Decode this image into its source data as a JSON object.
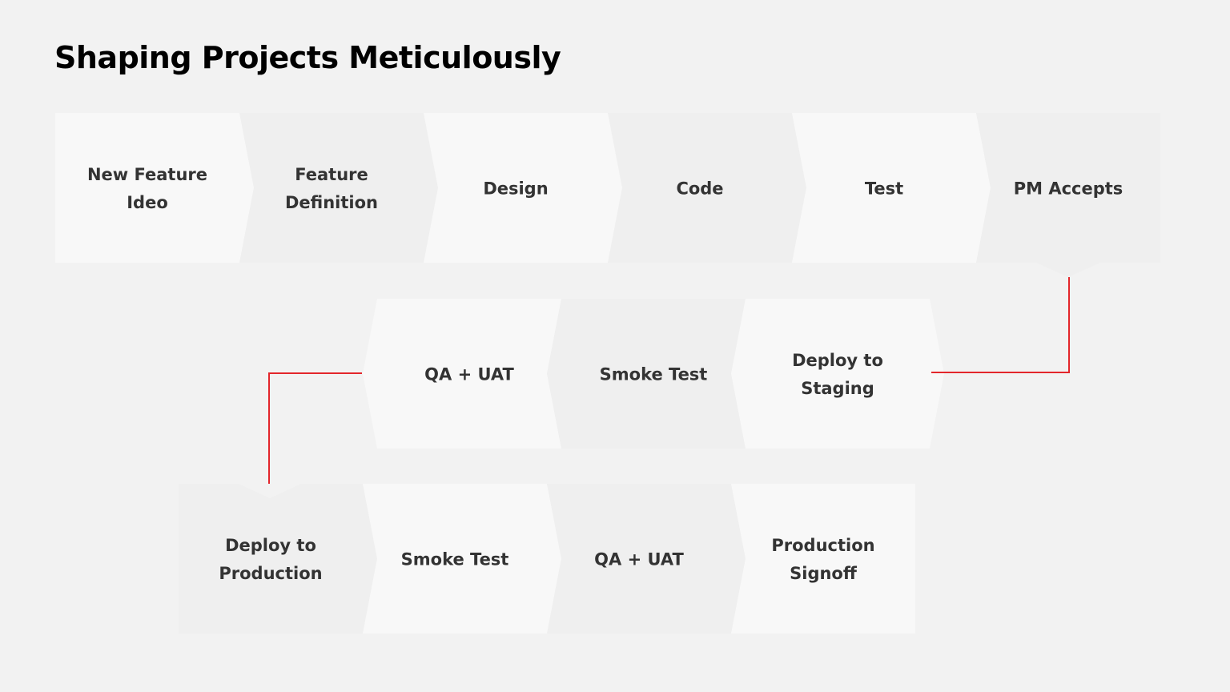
{
  "title": "Shaping Projects Meticulously",
  "colors": {
    "background": "#f2f2f2",
    "step_light": "#f8f8f8",
    "step_dark": "#efefef",
    "connector": "#e3262b",
    "text": "#333333",
    "title": "#000000"
  },
  "rows": [
    {
      "direction": "right",
      "steps": [
        {
          "lines": [
            "New Feature",
            "Ideo"
          ]
        },
        {
          "lines": [
            "Feature",
            "Definition"
          ]
        },
        {
          "lines": [
            "Design"
          ]
        },
        {
          "lines": [
            "Code"
          ]
        },
        {
          "lines": [
            "Test"
          ]
        },
        {
          "lines": [
            "PM Accepts"
          ]
        }
      ]
    },
    {
      "direction": "left",
      "steps": [
        {
          "lines": [
            "QA + UAT"
          ]
        },
        {
          "lines": [
            "Smoke Test"
          ]
        },
        {
          "lines": [
            "Deploy to",
            "Staging"
          ]
        }
      ]
    },
    {
      "direction": "right",
      "steps": [
        {
          "lines": [
            "Deploy to",
            "Production"
          ]
        },
        {
          "lines": [
            "Smoke Test"
          ]
        },
        {
          "lines": [
            "QA + UAT"
          ]
        },
        {
          "lines": [
            "Production",
            "Signoff"
          ]
        }
      ]
    }
  ]
}
